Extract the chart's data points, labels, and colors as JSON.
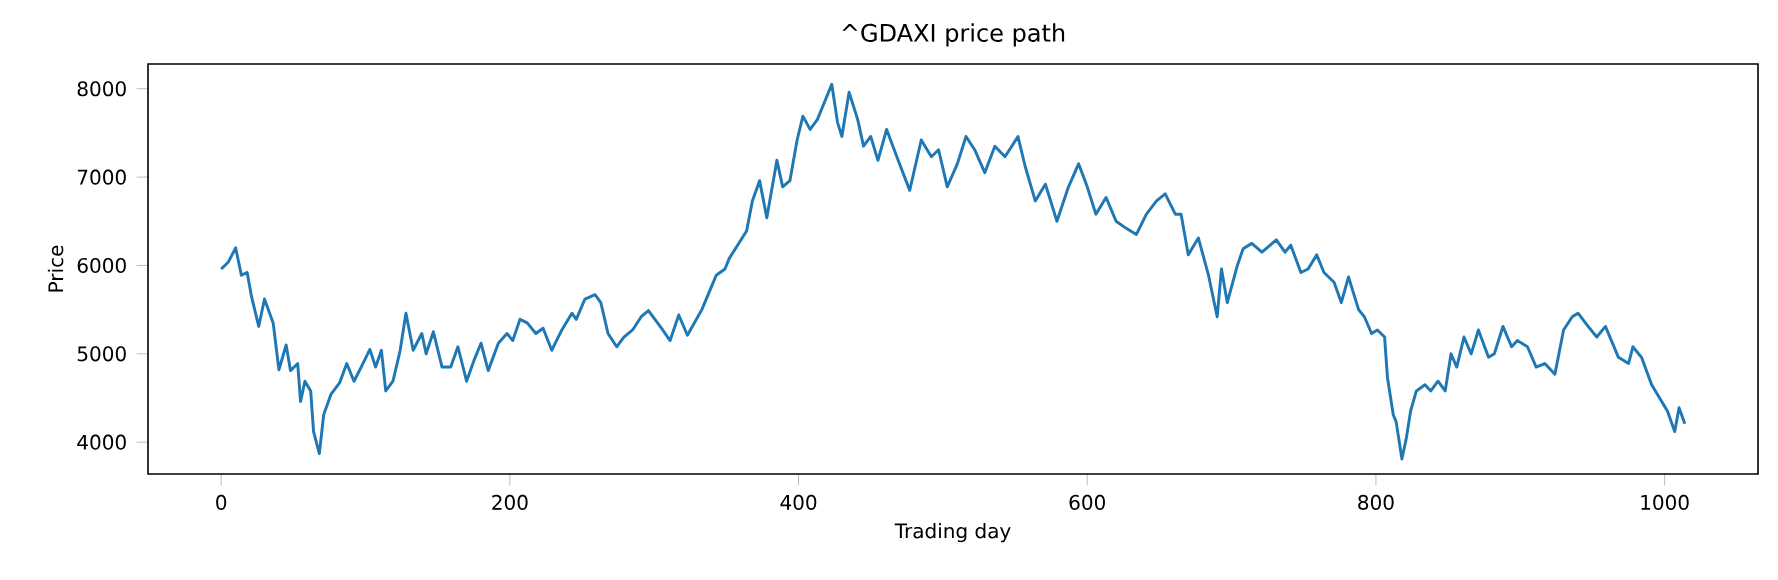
{
  "chart_data": {
    "type": "line",
    "title": "^GDAXI price path",
    "xlabel": "Trading day",
    "ylabel": "Price",
    "xlim": [
      -50.7,
      1064.7
    ],
    "ylim": [
      3640,
      8280
    ],
    "xticks": [
      0,
      200,
      400,
      600,
      800,
      1000
    ],
    "yticks": [
      4000,
      5000,
      6000,
      7000,
      8000
    ],
    "grid": false,
    "marker": "none",
    "line_style": "solid",
    "series": [
      {
        "color": "#1f77b4",
        "x": [
          0,
          5,
          10,
          14,
          18,
          21,
          26,
          30,
          36,
          40,
          45,
          48,
          53,
          55,
          58,
          62,
          64,
          68,
          71,
          76,
          82,
          87,
          92,
          97,
          103,
          107,
          111,
          114,
          119,
          124,
          128,
          133,
          139,
          142,
          147,
          153,
          159,
          164,
          170,
          175,
          180,
          185,
          192,
          198,
          202,
          207,
          212,
          218,
          223,
          229,
          236,
          243,
          246,
          252,
          259,
          263,
          268,
          274,
          279,
          285,
          291,
          296,
          305,
          311,
          317,
          323,
          333,
          343,
          349,
          352,
          364,
          368,
          373,
          378,
          385,
          389,
          394,
          399,
          403,
          408,
          413,
          417,
          423,
          427,
          430,
          435,
          441,
          445,
          450,
          455,
          461,
          469,
          477,
          485,
          492,
          497,
          503,
          510,
          516,
          522,
          529,
          536,
          543,
          552,
          557,
          564,
          571,
          579,
          587,
          594,
          600,
          606,
          613,
          620,
          627,
          634,
          641,
          648,
          654,
          661,
          665,
          670,
          677,
          684,
          690,
          693,
          697,
          704,
          708,
          714,
          721,
          731,
          737,
          741,
          748,
          753,
          759,
          764,
          771,
          776,
          781,
          788,
          792,
          797,
          801,
          806,
          808,
          812,
          814,
          818,
          821,
          824,
          828,
          834,
          838,
          843,
          848,
          852,
          856,
          861,
          866,
          871,
          878,
          882,
          888,
          894,
          898,
          905,
          911,
          917,
          924,
          930,
          936,
          940,
          947,
          953,
          959,
          968,
          975,
          978,
          984,
          991,
          998,
          1002,
          1007,
          1010,
          1014
        ],
        "values": [
          5960,
          6040,
          6200,
          5890,
          5920,
          5650,
          5310,
          5620,
          5350,
          4820,
          5100,
          4810,
          4890,
          4460,
          4690,
          4580,
          4120,
          3870,
          4310,
          4540,
          4670,
          4890,
          4690,
          4850,
          5050,
          4850,
          5040,
          4580,
          4690,
          5040,
          5460,
          5040,
          5230,
          5000,
          5250,
          4850,
          4850,
          5080,
          4690,
          4920,
          5120,
          4810,
          5120,
          5230,
          5150,
          5390,
          5350,
          5230,
          5290,
          5040,
          5270,
          5460,
          5390,
          5620,
          5670,
          5580,
          5230,
          5080,
          5190,
          5270,
          5420,
          5490,
          5290,
          5150,
          5440,
          5210,
          5500,
          5890,
          5960,
          6080,
          6390,
          6730,
          6960,
          6540,
          7190,
          6890,
          6960,
          7420,
          7690,
          7540,
          7650,
          7810,
          8050,
          7620,
          7460,
          7960,
          7650,
          7350,
          7460,
          7190,
          7540,
          7190,
          6850,
          7420,
          7230,
          7310,
          6890,
          7150,
          7460,
          7310,
          7050,
          7350,
          7230,
          7460,
          7120,
          6730,
          6920,
          6500,
          6890,
          7150,
          6890,
          6580,
          6770,
          6500,
          6420,
          6350,
          6580,
          6730,
          6810,
          6580,
          6580,
          6120,
          6310,
          5890,
          5420,
          5960,
          5580,
          6000,
          6190,
          6250,
          6150,
          6290,
          6150,
          6230,
          5920,
          5960,
          6120,
          5920,
          5810,
          5580,
          5870,
          5500,
          5420,
          5230,
          5270,
          5190,
          4730,
          4310,
          4230,
          3810,
          4040,
          4350,
          4580,
          4650,
          4580,
          4690,
          4580,
          5000,
          4850,
          5190,
          5000,
          5270,
          4960,
          5000,
          5310,
          5080,
          5150,
          5080,
          4850,
          4890,
          4770,
          5270,
          5420,
          5460,
          5310,
          5190,
          5310,
          4960,
          4890,
          5080,
          4960,
          4650,
          4460,
          4350,
          4120,
          4390,
          4210
        ]
      }
    ]
  }
}
